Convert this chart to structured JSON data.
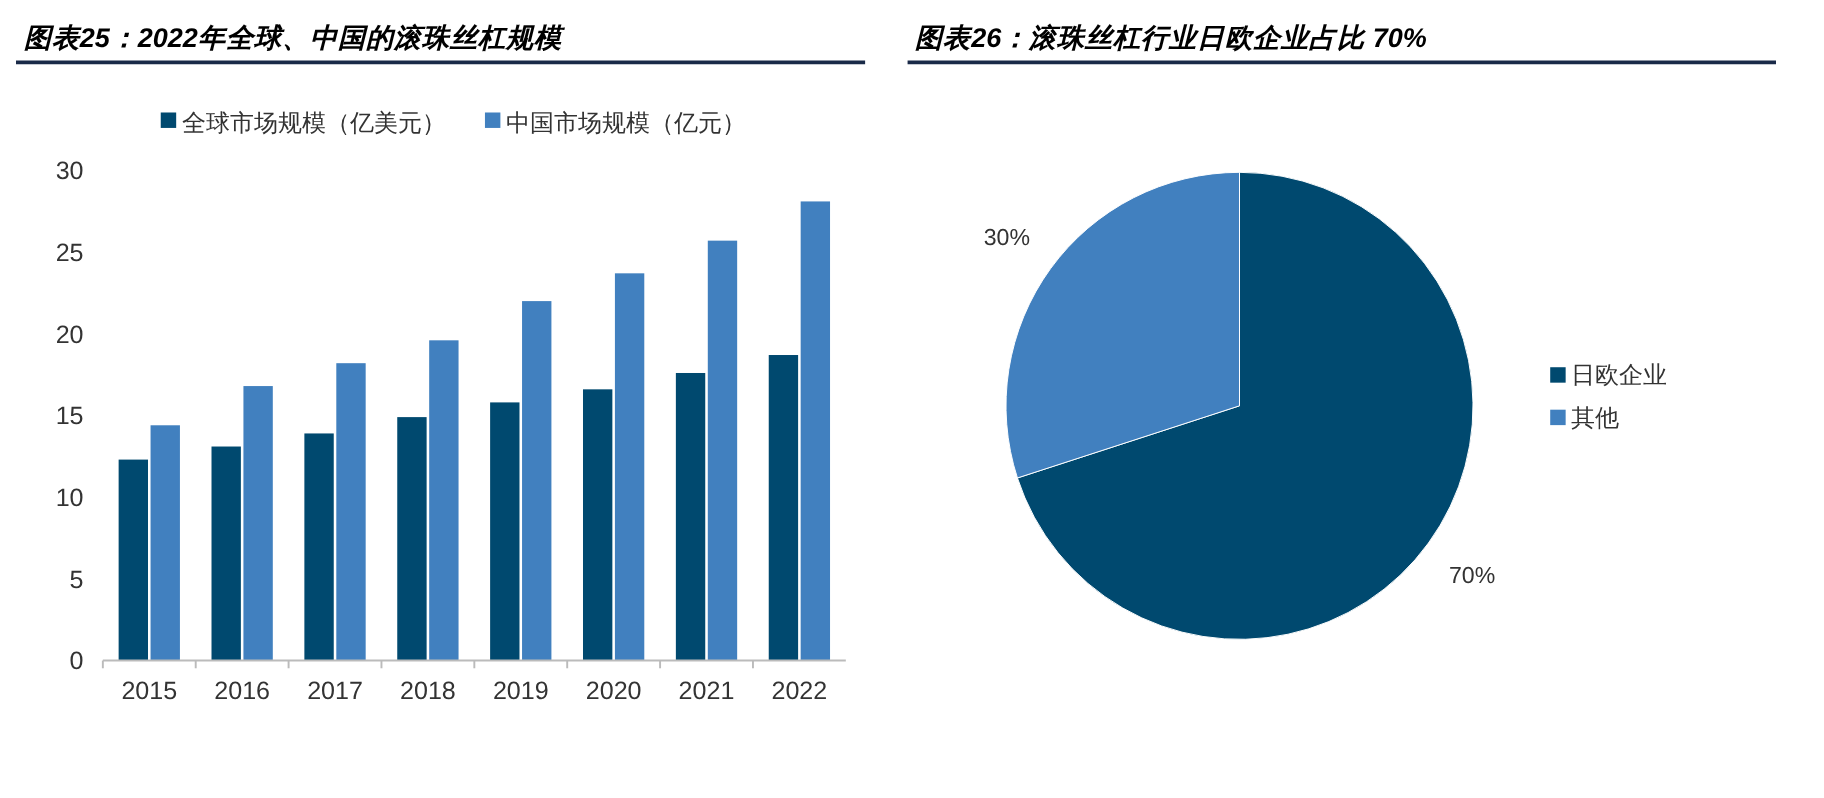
{
  "chart_data": [
    {
      "type": "bar",
      "title": "图表25：2022年全球、中国的滚珠丝杠规模",
      "categories": [
        "2015",
        "2016",
        "2017",
        "2018",
        "2019",
        "2020",
        "2021",
        "2022"
      ],
      "series": [
        {
          "name": "全球市场规模（亿美元）",
          "color": "#00496f",
          "values": [
            12.3,
            13.1,
            13.9,
            14.9,
            15.8,
            16.6,
            17.6,
            18.7
          ]
        },
        {
          "name": "中国市场规模（亿元）",
          "color": "#4180bf",
          "values": [
            14.4,
            16.8,
            18.2,
            19.6,
            22.0,
            23.7,
            25.7,
            28.1
          ]
        }
      ],
      "ylim": [
        0,
        30
      ],
      "yticks": [
        0,
        5,
        10,
        15,
        20,
        25,
        30
      ],
      "legend": "top left"
    },
    {
      "type": "pie",
      "title": "图表26：滚珠丝杠行业日欧企业占比 70%",
      "categories": [
        "日欧企业",
        "其他"
      ],
      "values": [
        70,
        30
      ],
      "colors": [
        "#00496f",
        "#4180bf"
      ],
      "legend": "right",
      "value_labels": [
        "70%",
        "30%"
      ]
    }
  ]
}
